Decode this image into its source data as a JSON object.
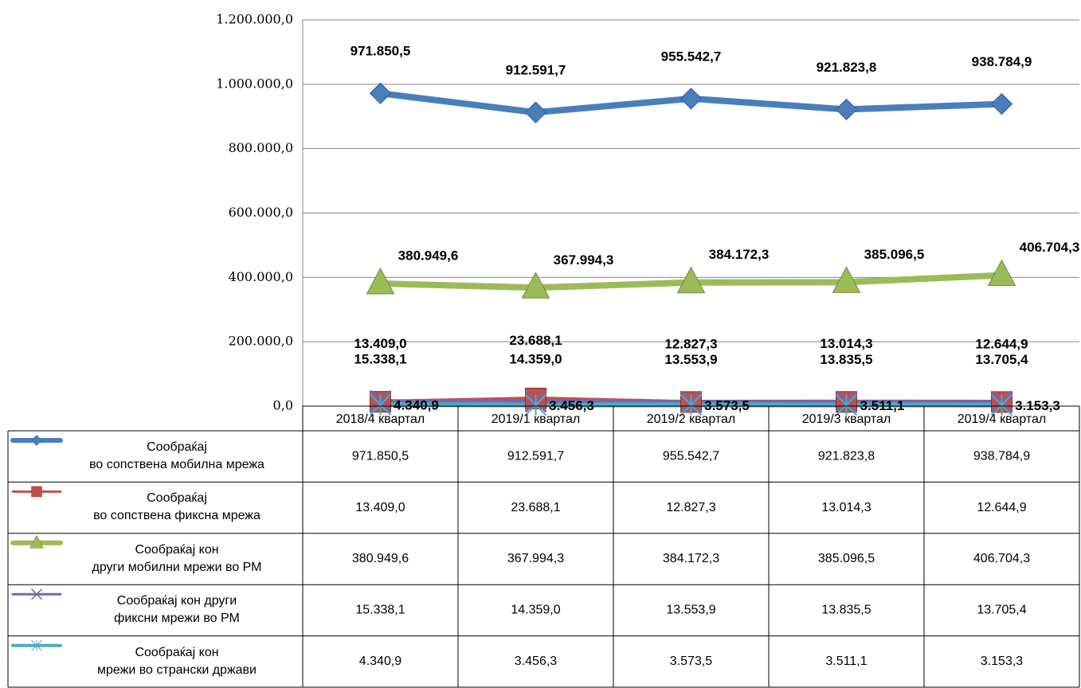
{
  "chart_data": {
    "type": "line",
    "categories": [
      "2018/4 квартал",
      "2019/1 квартал",
      "2019/2 квартал",
      "2019/3 квартал",
      "2019/4 квартал"
    ],
    "ylim": [
      0,
      1200000
    ],
    "yticks": [
      {
        "value": 0,
        "label": "0,0"
      },
      {
        "value": 200000,
        "label": "200.000,0"
      },
      {
        "value": 400000,
        "label": "400.000,0"
      },
      {
        "value": 600000,
        "label": "600.000,0"
      },
      {
        "value": 800000,
        "label": "800.000,0"
      },
      {
        "value": 1000000,
        "label": "1.000.000,0"
      },
      {
        "value": 1200000,
        "label": "1.200.000,0"
      }
    ],
    "grid": true,
    "series": [
      {
        "name": "Сообраќај\nво сопствена мобилна  мрежа",
        "color": "#4a7ebb",
        "marker": "diamond",
        "values": [
          971850.5,
          912591.7,
          955542.7,
          921823.8,
          938784.9
        ],
        "value_labels": [
          "971.850,5",
          "912.591,7",
          "955.542,7",
          "921.823,8",
          "938.784,9"
        ]
      },
      {
        "name": "Сообраќај\nво сопствена фиксна  мрежа",
        "color": "#c0504d",
        "marker": "square",
        "values": [
          13409.0,
          23688.1,
          12827.3,
          13014.3,
          12644.9
        ],
        "value_labels": [
          "13.409,0",
          "23.688,1",
          "12.827,3",
          "13.014,3",
          "12.644,9"
        ]
      },
      {
        "name": "Сообраќај кон\nдруги мобилни мрежи во РМ",
        "color": "#9bbb59",
        "marker": "triangle",
        "values": [
          380949.6,
          367994.3,
          384172.3,
          385096.5,
          406704.3
        ],
        "value_labels": [
          "380.949,6",
          "367.994,3",
          "384.172,3",
          "385.096,5",
          "406.704,3"
        ]
      },
      {
        "name": "Сообраќај кон други\nфиксни мрежи во РМ",
        "color": "#8064a2",
        "marker": "x",
        "values": [
          15338.1,
          14359.0,
          13553.9,
          13835.5,
          13705.4
        ],
        "value_labels": [
          "15.338,1",
          "14.359,0",
          "13.553,9",
          "13.835,5",
          "13.705,4"
        ]
      },
      {
        "name": "Сообраќај кон\nмрежи во странски држави",
        "color": "#4bacc6",
        "marker": "star",
        "values": [
          4340.9,
          3456.3,
          3573.5,
          3511.1,
          3153.3
        ],
        "value_labels": [
          "4.340,9",
          "3.456,3",
          "3.573,5",
          "3.511,1",
          "3.153,3"
        ]
      }
    ]
  }
}
